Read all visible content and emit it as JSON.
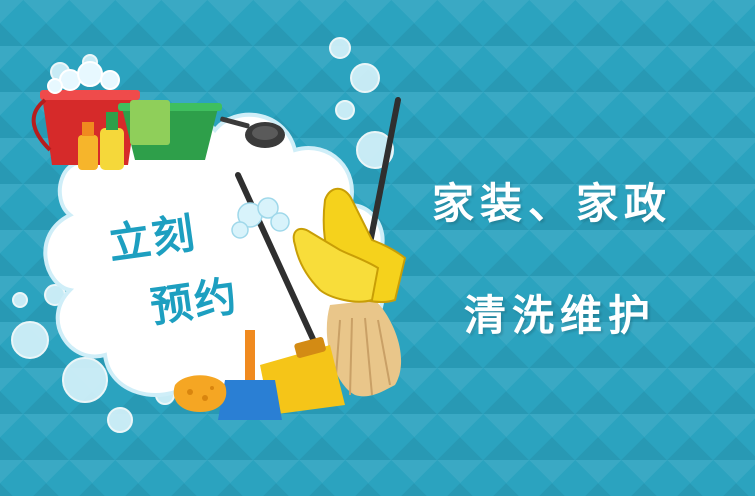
{
  "badge": {
    "line1": "立刻",
    "line2": "预约"
  },
  "headline": {
    "line1": "家装、家政",
    "line2": "清洗维护"
  },
  "colors": {
    "background": "#2ba3bf",
    "badge_text": "#1d9fc0",
    "headline_text": "#ffffff",
    "glove": "#f5d21c",
    "bucket": "#d62a2a",
    "basin": "#2e9f4a",
    "mop": "#e9c68a"
  },
  "icons": [
    "cloud-badge-icon",
    "bucket-icon",
    "basin-icon",
    "spray-bottle-icon",
    "frying-pan-icon",
    "mop-icon",
    "broom-icon",
    "rubber-glove-icon",
    "sponge-icon",
    "dustpan-icon",
    "bubbles-icon"
  ]
}
